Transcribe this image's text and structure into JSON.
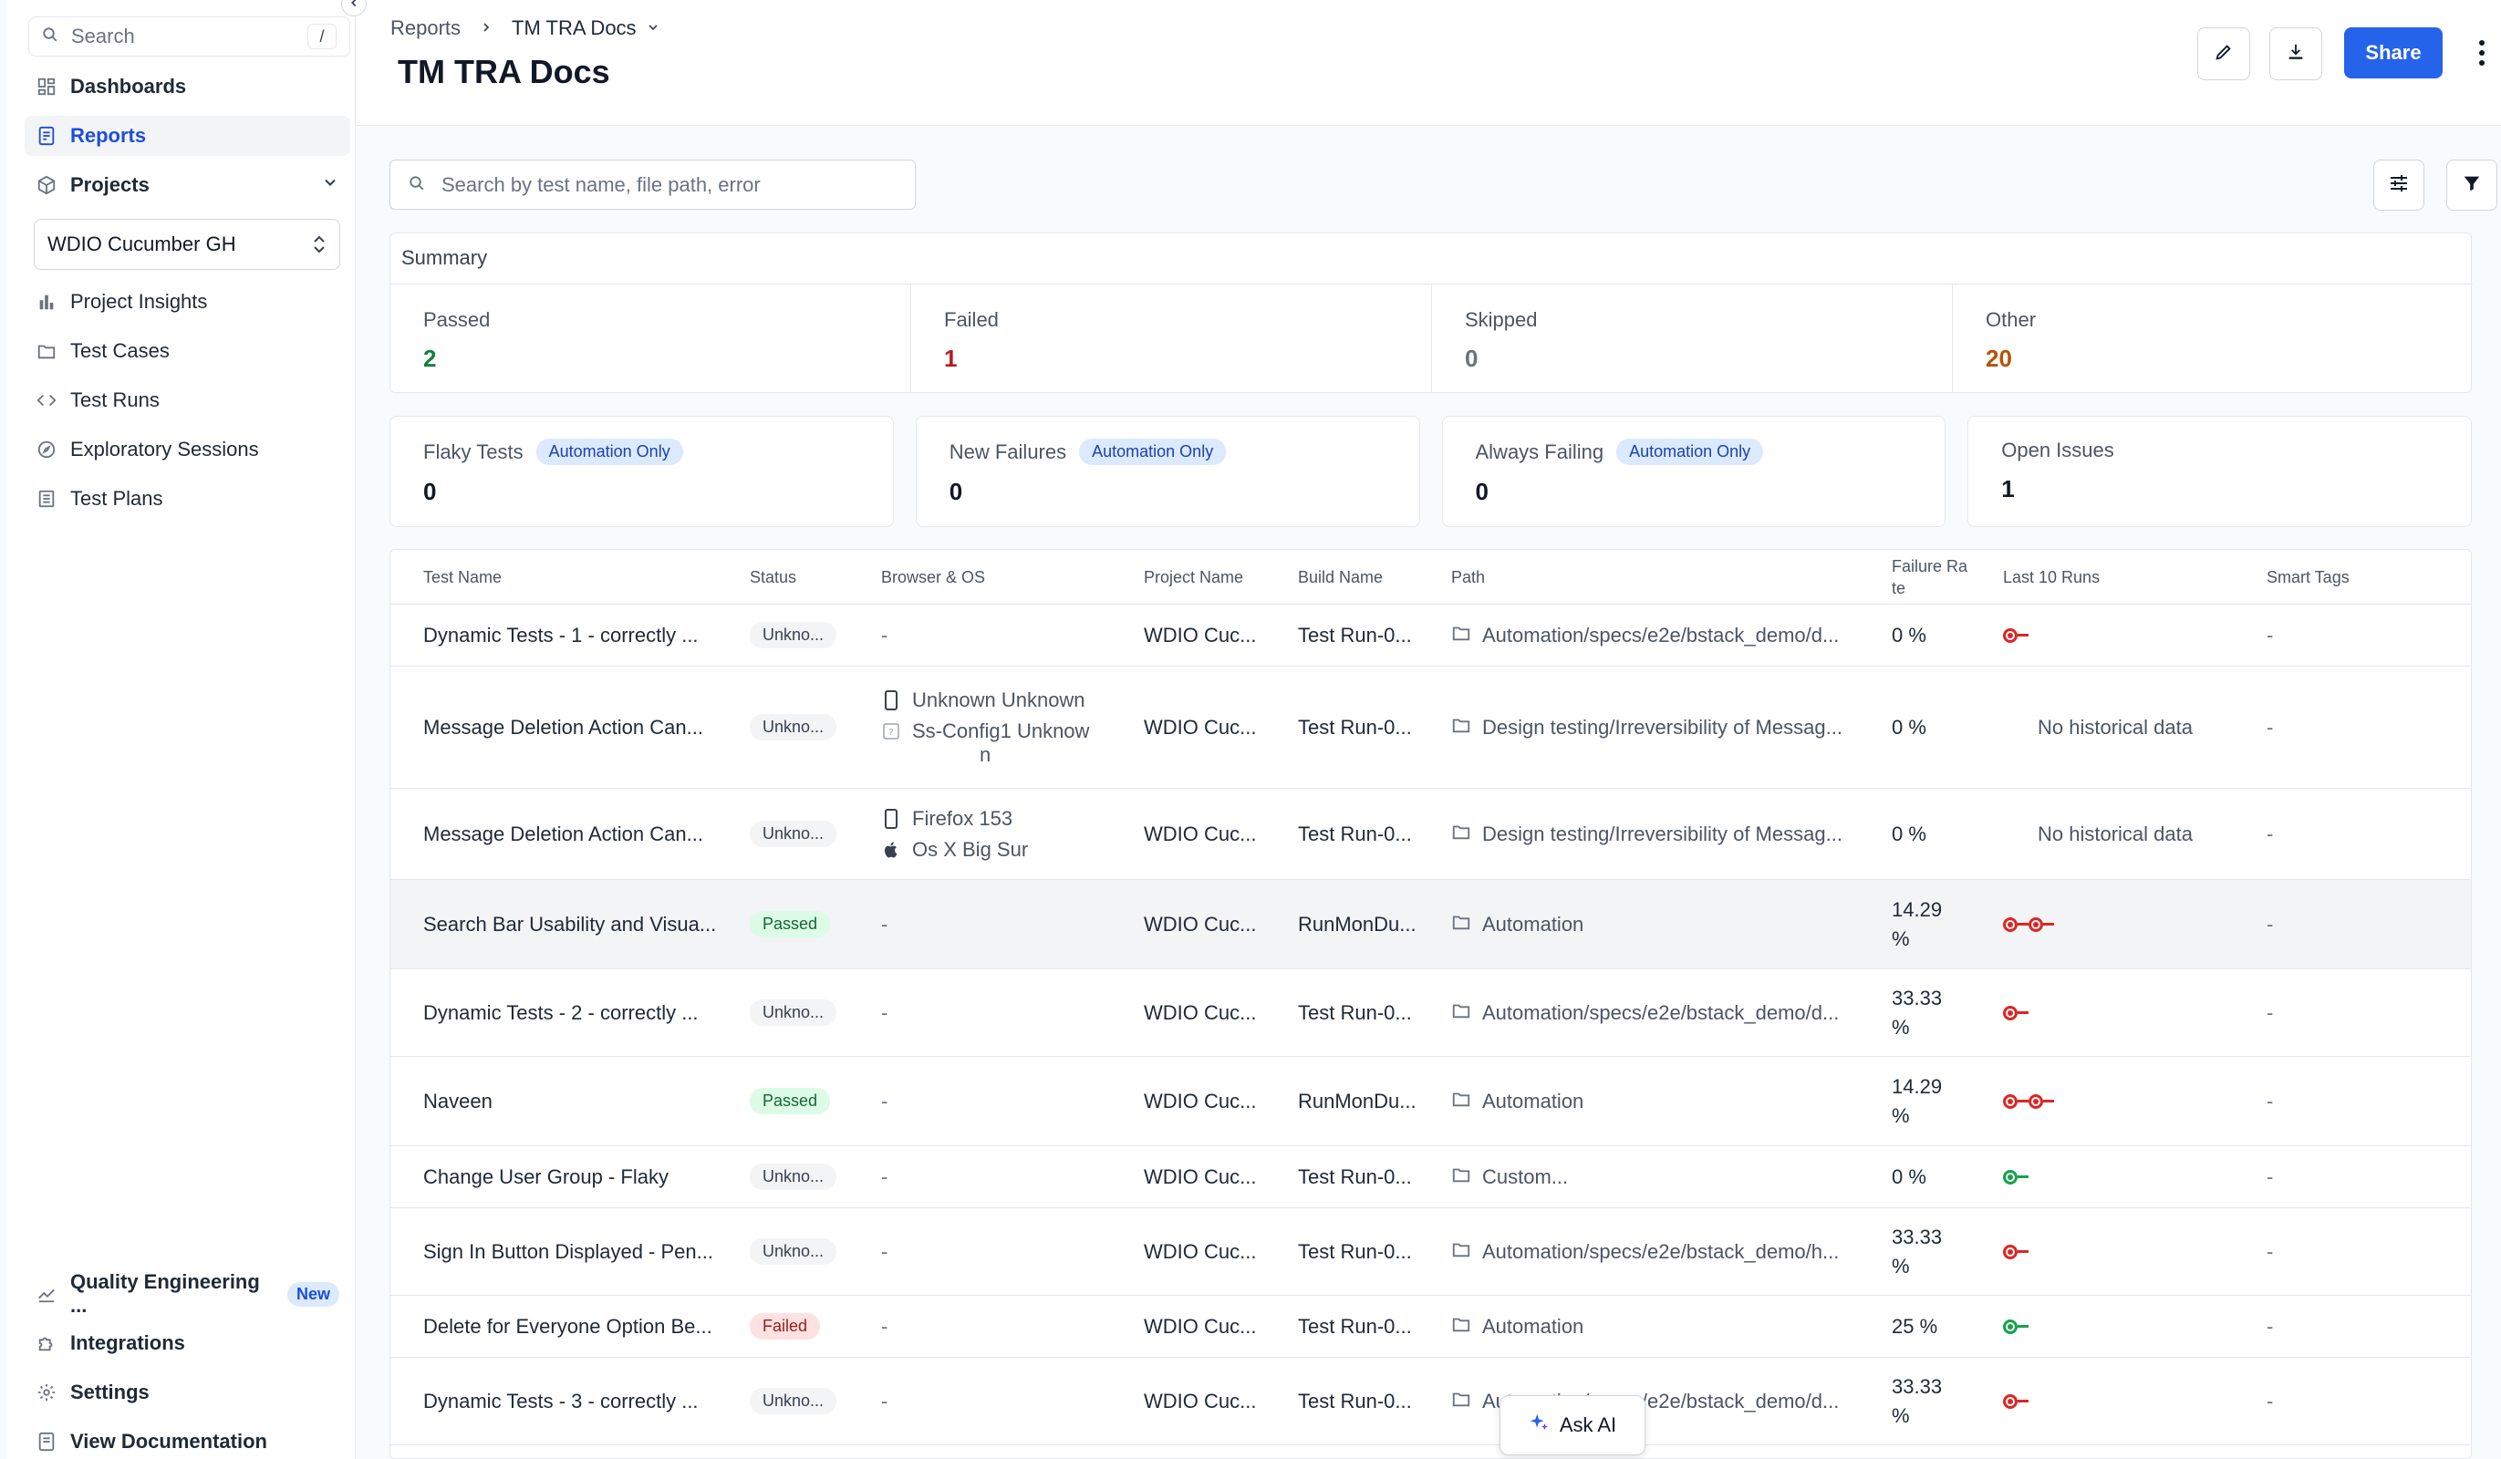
{
  "sidebar": {
    "search_placeholder": "Search",
    "search_shortcut": "/",
    "dashboards": "Dashboards",
    "reports": "Reports",
    "projects": "Projects",
    "project_selected": "WDIO Cucumber GH",
    "project_insights": "Project Insights",
    "test_cases": "Test Cases",
    "test_runs": "Test Runs",
    "exploratory_sessions": "Exploratory Sessions",
    "test_plans": "Test Plans",
    "quality_engineering": "Quality Engineering ...",
    "new_badge": "New",
    "integrations": "Integrations",
    "settings": "Settings",
    "view_documentation": "View Documentation"
  },
  "header": {
    "breadcrumb_root": "Reports",
    "breadcrumb_current": "TM TRA Docs",
    "title": "TM TRA Docs",
    "share": "Share"
  },
  "search": {
    "placeholder": "Search by test name, file path, error"
  },
  "summary": {
    "title": "Summary",
    "cells": [
      {
        "label": "Passed",
        "value": "2",
        "color": "#15803d"
      },
      {
        "label": "Failed",
        "value": "1",
        "color": "#b91c1c"
      },
      {
        "label": "Skipped",
        "value": "0",
        "color": "#6b7280"
      },
      {
        "label": "Other",
        "value": "20",
        "color": "#b45309"
      }
    ]
  },
  "metrics": [
    {
      "label": "Flaky Tests",
      "badge": "Automation Only",
      "value": "0"
    },
    {
      "label": "New Failures",
      "badge": "Automation Only",
      "value": "0"
    },
    {
      "label": "Always Failing",
      "badge": "Automation Only",
      "value": "0"
    },
    {
      "label": "Open Issues",
      "badge": "",
      "value": "1"
    }
  ],
  "table": {
    "headers": {
      "test_name": "Test Name",
      "status": "Status",
      "browser_os": "Browser & OS",
      "project_name": "Project Name",
      "build_name": "Build Name",
      "path": "Path",
      "failure_rate_1": "Failure Ra",
      "failure_rate_2": "te",
      "last_runs": "Last 10 Runs",
      "smart_tags": "Smart Tags"
    },
    "rows": [
      {
        "name": "Dynamic Tests - 1 - correctly ...",
        "status": "Unkno...",
        "env1": "-",
        "env2": "",
        "env3": "",
        "project": "WDIO Cuc...",
        "build": "Test Run-0...",
        "path": "Automation/specs/e2e/bstack_demo/d...",
        "rate1": "0 %",
        "rate2": "",
        "runs": "",
        "tags": "-"
      },
      {
        "name": "Message Deletion Action Can...",
        "status": "Unkno...",
        "env1": "Unknown Unknown",
        "env2": "Ss-Config1 Unknow",
        "env3": "n",
        "project": "WDIO Cuc...",
        "build": "Test Run-0...",
        "path": "Design testing/Irreversibility of Messag...",
        "rate1": "0 %",
        "rate2": "",
        "runs": "No historical data",
        "tags": "-"
      },
      {
        "name": "Message Deletion Action Can...",
        "status": "Unkno...",
        "env1": "Firefox 153",
        "env2": "Os X Big Sur",
        "env3": "",
        "project": "WDIO Cuc...",
        "build": "Test Run-0...",
        "path": "Design testing/Irreversibility of Messag...",
        "rate1": "0 %",
        "rate2": "",
        "runs": "No historical data",
        "tags": "-"
      },
      {
        "name": "Search Bar Usability and Visua...",
        "status": "Passed",
        "env1": "-",
        "env2": "",
        "env3": "",
        "project": "WDIO Cuc...",
        "build": "RunMonDu...",
        "path": "Automation",
        "rate1": "14.29",
        "rate2": "%",
        "runs": "",
        "tags": "-"
      },
      {
        "name": "Dynamic Tests - 2 - correctly ...",
        "status": "Unkno...",
        "env1": "-",
        "env2": "",
        "env3": "",
        "project": "WDIO Cuc...",
        "build": "Test Run-0...",
        "path": "Automation/specs/e2e/bstack_demo/d...",
        "rate1": "33.33",
        "rate2": "%",
        "runs": "",
        "tags": "-"
      },
      {
        "name": "Naveen",
        "status": "Passed",
        "env1": "-",
        "env2": "",
        "env3": "",
        "project": "WDIO Cuc...",
        "build": "RunMonDu...",
        "path": "Automation",
        "rate1": "14.29",
        "rate2": "%",
        "runs": "",
        "tags": "-"
      },
      {
        "name": "Change User Group - Flaky",
        "status": "Unkno...",
        "env1": "-",
        "env2": "",
        "env3": "",
        "project": "WDIO Cuc...",
        "build": "Test Run-0...",
        "path": "Custom...",
        "rate1": "0 %",
        "rate2": "",
        "runs": "",
        "tags": "-"
      },
      {
        "name": "Sign In Button Displayed - Pen...",
        "status": "Unkno...",
        "env1": "-",
        "env2": "",
        "env3": "",
        "project": "WDIO Cuc...",
        "build": "Test Run-0...",
        "path": "Automation/specs/e2e/bstack_demo/h...",
        "rate1": "33.33",
        "rate2": "%",
        "runs": "",
        "tags": "-"
      },
      {
        "name": "Delete for Everyone Option Be...",
        "status": "Failed",
        "env1": "-",
        "env2": "",
        "env3": "",
        "project": "WDIO Cuc...",
        "build": "Test Run-0...",
        "path": "Automation",
        "rate1": "25 %",
        "rate2": "",
        "runs": "",
        "tags": "-"
      },
      {
        "name": "Dynamic Tests - 3 - correctly ...",
        "status": "Unkno...",
        "env1": "-",
        "env2": "",
        "env3": "",
        "project": "WDIO Cuc...",
        "build": "Test Run-0...",
        "path": "Automation/specs/e2e/bstack_demo/d...",
        "rate1": "33.33",
        "rate2": "%",
        "runs": "",
        "tags": "-"
      }
    ]
  },
  "ask_ai": "Ask AI"
}
